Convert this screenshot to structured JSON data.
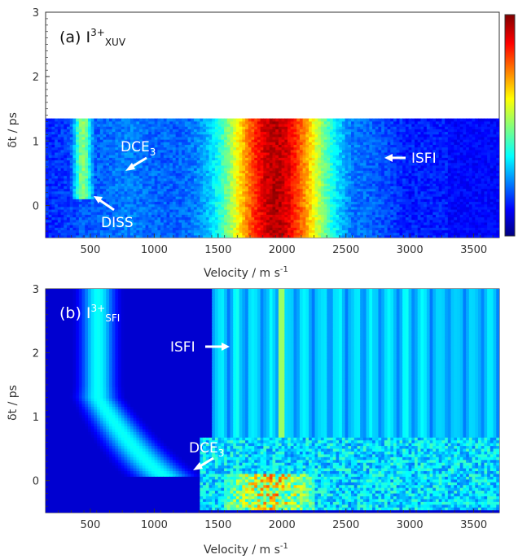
{
  "chart_data": [
    {
      "type": "heatmap",
      "panel_label": "(a) I",
      "panel_sup": "3+",
      "panel_sub": "XUV",
      "xlabel": "Velocity / m s",
      "xlabel_sup": "-1",
      "ylabel": "δt / ps",
      "xlim": [
        150,
        3700
      ],
      "ylim": [
        -0.5,
        3
      ],
      "data_ylim": [
        -0.5,
        1.35
      ],
      "x_ticks": [
        500,
        1000,
        1500,
        2000,
        2500,
        3000,
        3500
      ],
      "y_ticks": [
        0,
        1,
        2,
        3
      ],
      "colormap": "jet",
      "colorbar": true,
      "bands": [
        {
          "name": "DISS",
          "center": 440,
          "width": 60,
          "intensity": 0.45,
          "delay_start": 0.1
        },
        {
          "name": "main",
          "center": 1950,
          "width": 300,
          "intensity": 1.0,
          "delay_start": -0.5
        },
        {
          "name": "ISFI",
          "center": 2500,
          "width": 400,
          "intensity": 0.35,
          "delay_start": -0.5
        }
      ],
      "annotations": [
        {
          "text": "DCE",
          "sub": "3",
          "x": 780,
          "y": 0.9
        },
        {
          "text": "DISS",
          "x": 740,
          "y": -0.25
        },
        {
          "text": "ISFI",
          "x": 3180,
          "y": 0.7
        }
      ]
    },
    {
      "type": "heatmap",
      "panel_label": "(b) I",
      "panel_sup": "3+",
      "panel_sub": "SFI",
      "xlabel": "Velocity / m s",
      "xlabel_sup": "-1",
      "ylabel": "δt / ps",
      "xlim": [
        150,
        3700
      ],
      "ylim": [
        -0.5,
        3
      ],
      "x_ticks": [
        500,
        1000,
        1500,
        2000,
        2500,
        3000,
        3500
      ],
      "y_ticks": [
        0,
        1,
        2,
        3
      ],
      "colormap": "jet",
      "features": [
        {
          "name": "DCE3 curve",
          "description": "decaying from 500 m/s at 3 ps toward 1500 m/s at 0 ps"
        },
        {
          "name": "ISFI stripes",
          "x_range": [
            1500,
            3700
          ],
          "y_range": [
            0.7,
            3
          ]
        },
        {
          "name": "hot spot",
          "x_range": [
            1600,
            2200
          ],
          "y_range": [
            -0.4,
            0.1
          ]
        }
      ],
      "annotations": [
        {
          "text": "ISFI",
          "x": 1370,
          "y": 2.1
        },
        {
          "text": "DCE",
          "sub": "3",
          "x": 1150,
          "y": 0.45
        }
      ]
    }
  ]
}
